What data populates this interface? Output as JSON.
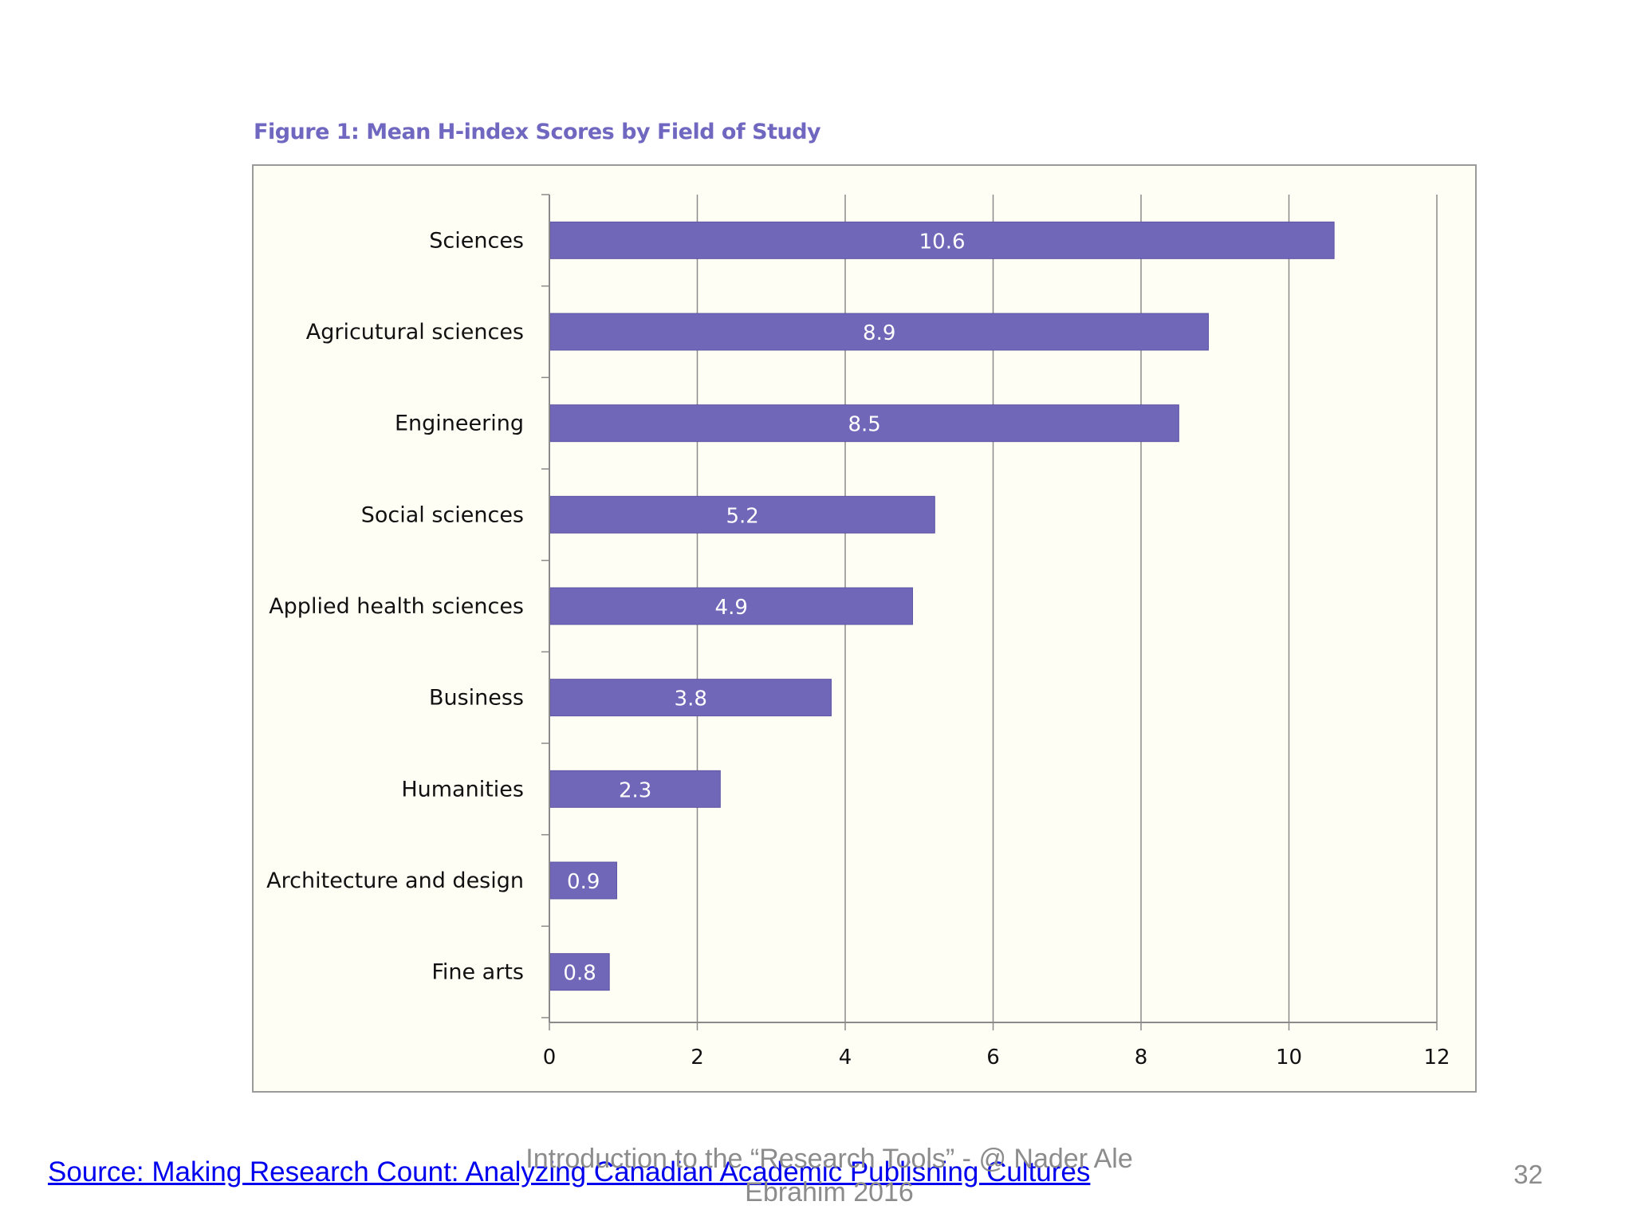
{
  "slide": {
    "source_link": "Source: Making Research Count: Analyzing Canadian Academic Publishing Cultures",
    "footer_line1": "Introduction to the “Research Tools” - @ Nader Ale",
    "footer_line2": "Ebrahim 2016",
    "page_number": "32"
  },
  "chart_data": {
    "type": "bar",
    "orientation": "horizontal",
    "title": "Figure 1: Mean H-index Scores by Field of Study",
    "xlabel": "",
    "ylabel": "",
    "categories": [
      "Sciences",
      "Agricutural sciences",
      "Engineering",
      "Social sciences",
      "Applied health sciences",
      "Business",
      "Humanities",
      "Architecture and design",
      "Fine arts"
    ],
    "values": [
      10.6,
      8.9,
      8.5,
      5.2,
      4.9,
      3.8,
      2.3,
      0.9,
      0.8
    ],
    "data_labels": [
      "10.6",
      "8.9",
      "8.5",
      "5.2",
      "4.9",
      "3.8",
      "2.3",
      "0.9",
      "0.8"
    ],
    "xlim": [
      0,
      12
    ],
    "xticks": [
      0,
      2,
      4,
      6,
      8,
      10,
      12
    ],
    "xtick_labels": [
      "0",
      "2",
      "4",
      "6",
      "8",
      "10",
      "12"
    ],
    "grid": "vertical",
    "legend": "none",
    "colors": {
      "bar": "#7067b8",
      "bar_border": "#5b53a3",
      "grid": "#8a8a8a",
      "plot_background": "#fffef4",
      "title": "#7067c0",
      "data_label": "#ffffff"
    }
  }
}
